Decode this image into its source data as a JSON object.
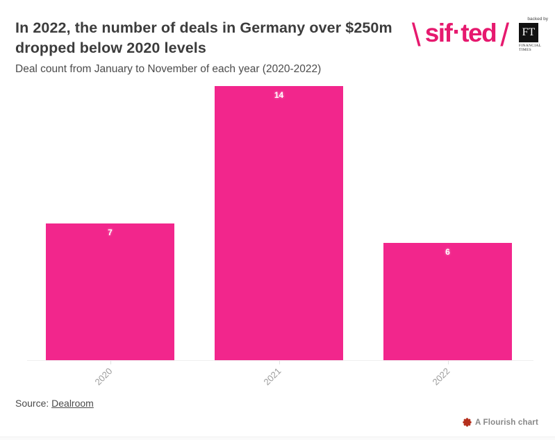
{
  "header": {
    "title_line1": "In 2022, the number of deals in Germany over $250m",
    "title_line2": "dropped below 2020 levels",
    "subtitle": "Deal count from January to November of each year (2020-2022)"
  },
  "logo": {
    "backslash": "\\",
    "wordmark_left": "sif",
    "wordmark_dot": "·",
    "wordmark_right": "ted",
    "slash": "/",
    "backed_by": "backed by",
    "ft_initials": "FT",
    "ft_name_line1": "FINANCIAL",
    "ft_name_line2": "TIMES",
    "brand_color": "#e6196e"
  },
  "chart_data": {
    "type": "bar",
    "categories": [
      "2020",
      "2021",
      "2022"
    ],
    "values": [
      7,
      14,
      6
    ],
    "title": "In 2022, the number of deals in Germany over $250m dropped below 2020 levels",
    "subtitle": "Deal count from January to November of each year (2020-2022)",
    "xlabel": "",
    "ylabel": "",
    "ylim": [
      0,
      14
    ],
    "grid": "off",
    "legend": "none",
    "bar_color": "#f2268c",
    "value_label_color": "#ffffff",
    "axis_label_color": "#9b9b9b"
  },
  "footer": {
    "source_label": "Source:",
    "source_link": "Dealroom",
    "flourish_label": "A Flourish chart",
    "flourish_icon_color": "#b5301d"
  }
}
